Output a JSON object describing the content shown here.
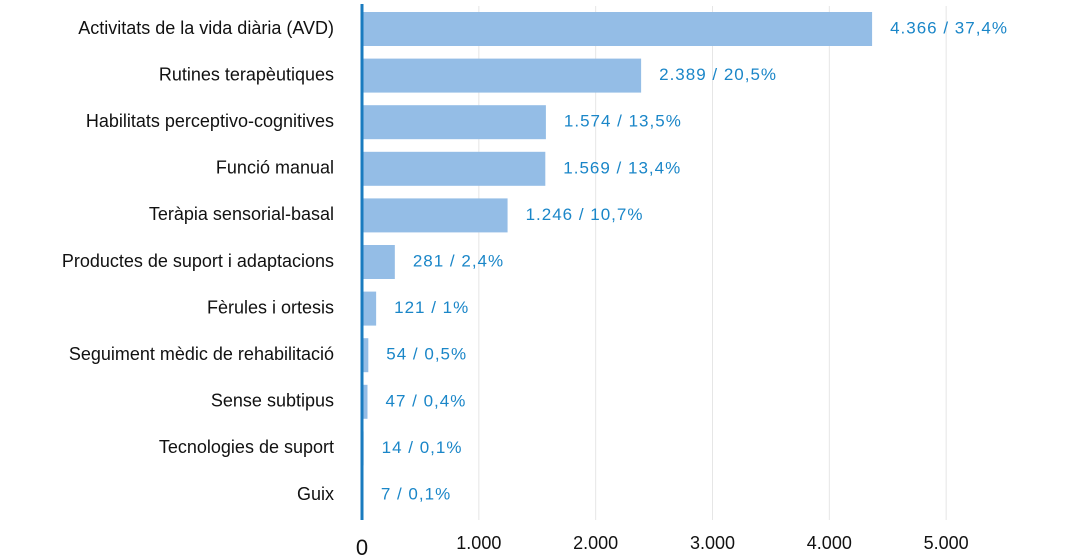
{
  "chart_data": {
    "type": "barh",
    "categories": [
      "Activitats de la vida diària (AVD)",
      "Rutines terapèutiques",
      "Habilitats perceptivo-cognitives",
      "Funció manual",
      "Teràpia sensorial-basal",
      "Productes de suport i adaptacions",
      "Fèrules i ortesis",
      "Seguiment mèdic de rehabilitació",
      "Sense subtipus",
      "Tecnologies de suport",
      "Guix"
    ],
    "values": [
      4366,
      2389,
      1574,
      1569,
      1246,
      281,
      121,
      54,
      47,
      14,
      7
    ],
    "value_labels": [
      "4.366 / 37,4%",
      "2.389 / 20,5%",
      "1.574 / 13,5%",
      "1.569 / 13,4%",
      "1.246 / 10,7%",
      "281 / 2,4%",
      "121 / 1%",
      "54 / 0,5%",
      "47 / 0,4%",
      "14 / 0,1%",
      "7 / 0,1%"
    ],
    "color": "#94bde6",
    "xlim": [
      0,
      6000
    ],
    "xticks": [
      0,
      {
        "value": 1000,
        "label": "1.000"
      },
      {
        "value": 2000,
        "label": "2.000"
      },
      {
        "value": 3000,
        "label": "3.000"
      },
      {
        "value": 4000,
        "label": "4.000"
      },
      {
        "value": 5000,
        "label": "5.000"
      }
    ],
    "grid": true
  }
}
